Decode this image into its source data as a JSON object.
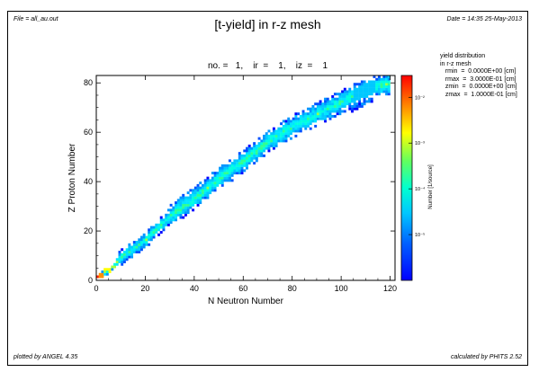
{
  "header": {
    "file": "File = all_au.out",
    "date": "Date = 14:35 25-May-2013",
    "title": "[t-yield] in r-z mesh",
    "subtitle": "no. =   1,    ir  =    1,    iz  =    1"
  },
  "info_box": {
    "line1": "yield distribution",
    "line2": "in r-z mesh",
    "rows": [
      "   rmin  =  0.0000E+00 [cm]",
      "   rmax  =  3.0000E-01 [cm]",
      "   zmin  =  0.0000E+00 [cm]",
      "   zmax  =  1.0000E-01 [cm]"
    ]
  },
  "footer": {
    "plotted_by": "plotted by ANGEL 4.35",
    "calculated_by": "calculated by PHITS 2.52"
  },
  "chart_data": {
    "type": "heatmap",
    "xlabel": "N Neutron Number",
    "ylabel": "Z Proton Number",
    "xlim": [
      0,
      122
    ],
    "ylim": [
      0,
      83
    ],
    "xticks": [
      0,
      20,
      40,
      60,
      80,
      100,
      120
    ],
    "yticks": [
      0,
      20,
      40,
      60,
      80
    ],
    "colorbar": {
      "label": "Number [1/source]",
      "scale": "log",
      "range": [
        1e-06,
        0.03
      ],
      "tick_labels": [
        "10⁻²",
        "10⁻³",
        "10⁻⁴",
        "10⁻⁵"
      ],
      "tick_values": [
        0.01,
        0.001,
        0.0001,
        1e-05
      ]
    },
    "band": {
      "description_points_N": [
        1,
        5,
        10,
        20,
        30,
        40,
        50,
        60,
        70,
        80,
        90,
        100,
        108,
        113,
        118
      ],
      "description_points_Z": [
        1,
        4,
        9,
        16,
        26,
        33,
        41,
        48,
        56,
        62,
        67,
        72,
        76,
        78,
        79
      ]
    },
    "grid": false,
    "colors": {
      "low": "#0000ff",
      "mid": "#00c8ff",
      "high": "#ff0000"
    }
  }
}
